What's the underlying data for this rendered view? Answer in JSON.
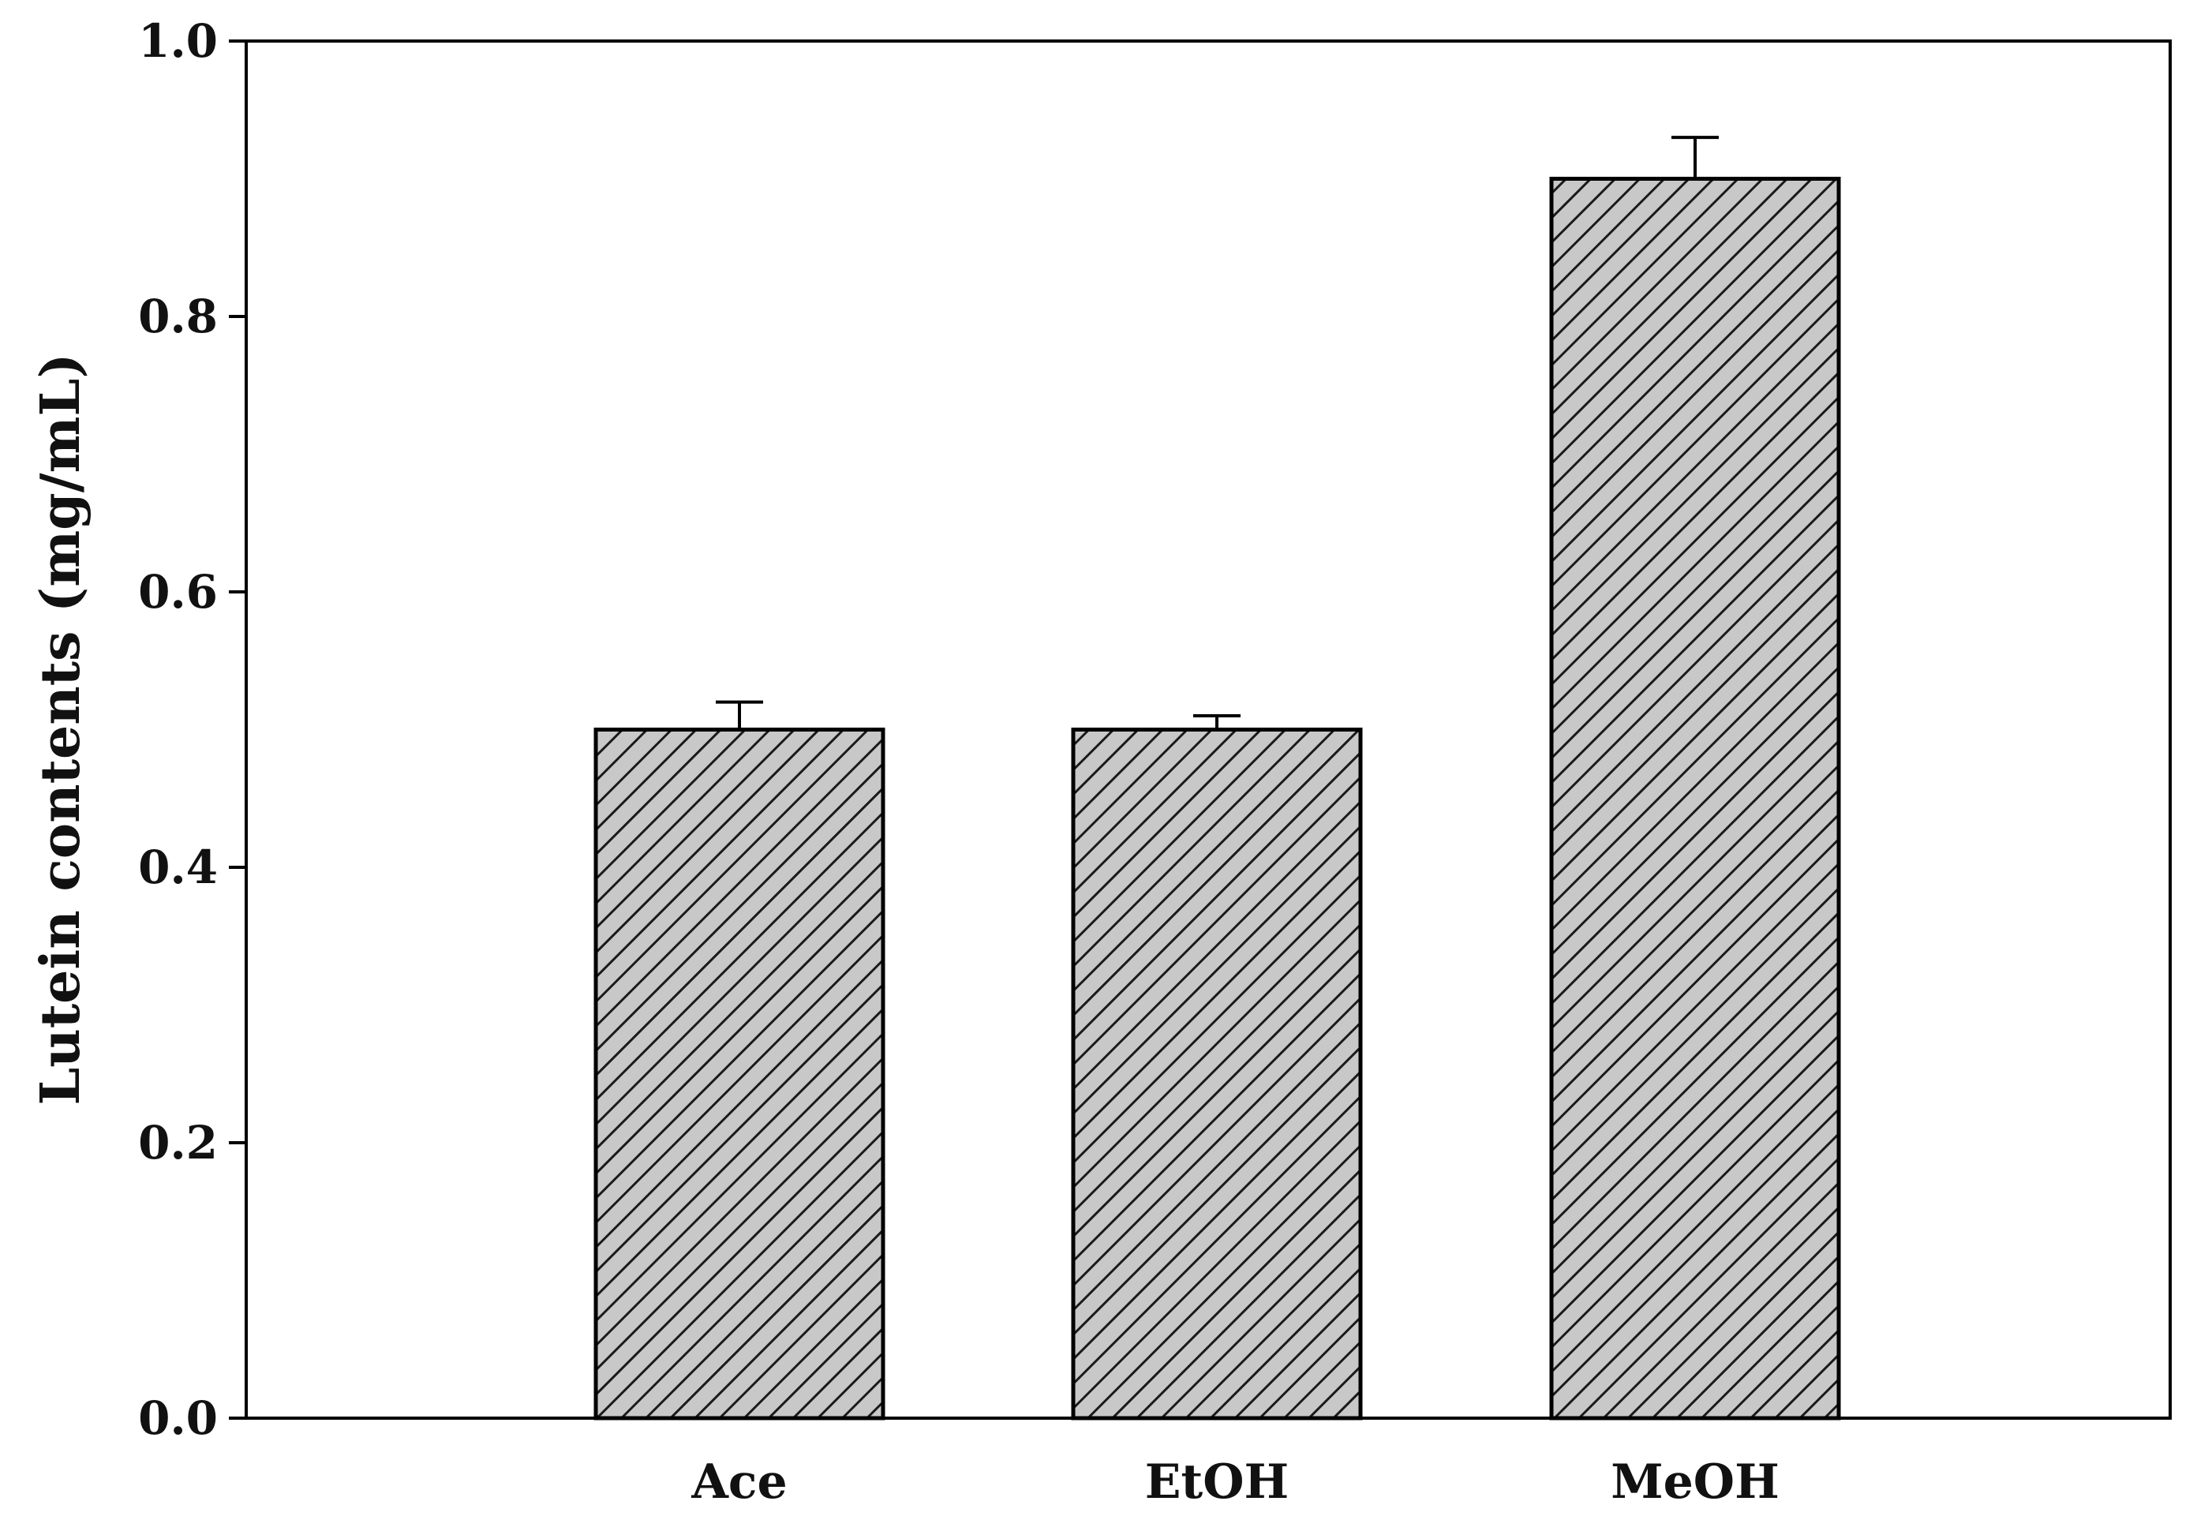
{
  "chart_data": {
    "type": "bar",
    "title": "",
    "xlabel": "",
    "ylabel": "Lutein contents (mg/mL)",
    "categories": [
      "Ace",
      "EtOH",
      "MeOH"
    ],
    "values": [
      0.5,
      0.5,
      0.9
    ],
    "error_bars": [
      0.02,
      0.01,
      0.03
    ],
    "ylim": [
      0.0,
      1.0
    ],
    "y_ticks": [
      0.0,
      0.2,
      0.4,
      0.6,
      0.8,
      1.0
    ],
    "y_tick_labels": [
      "0.0",
      "0.2",
      "0.4",
      "0.6",
      "0.8",
      "1.0"
    ],
    "grid": false,
    "legend": "none",
    "bar_fill": "#c8c8c8",
    "hatch_color": "#1a1a1a",
    "hatch": "diagonal"
  }
}
